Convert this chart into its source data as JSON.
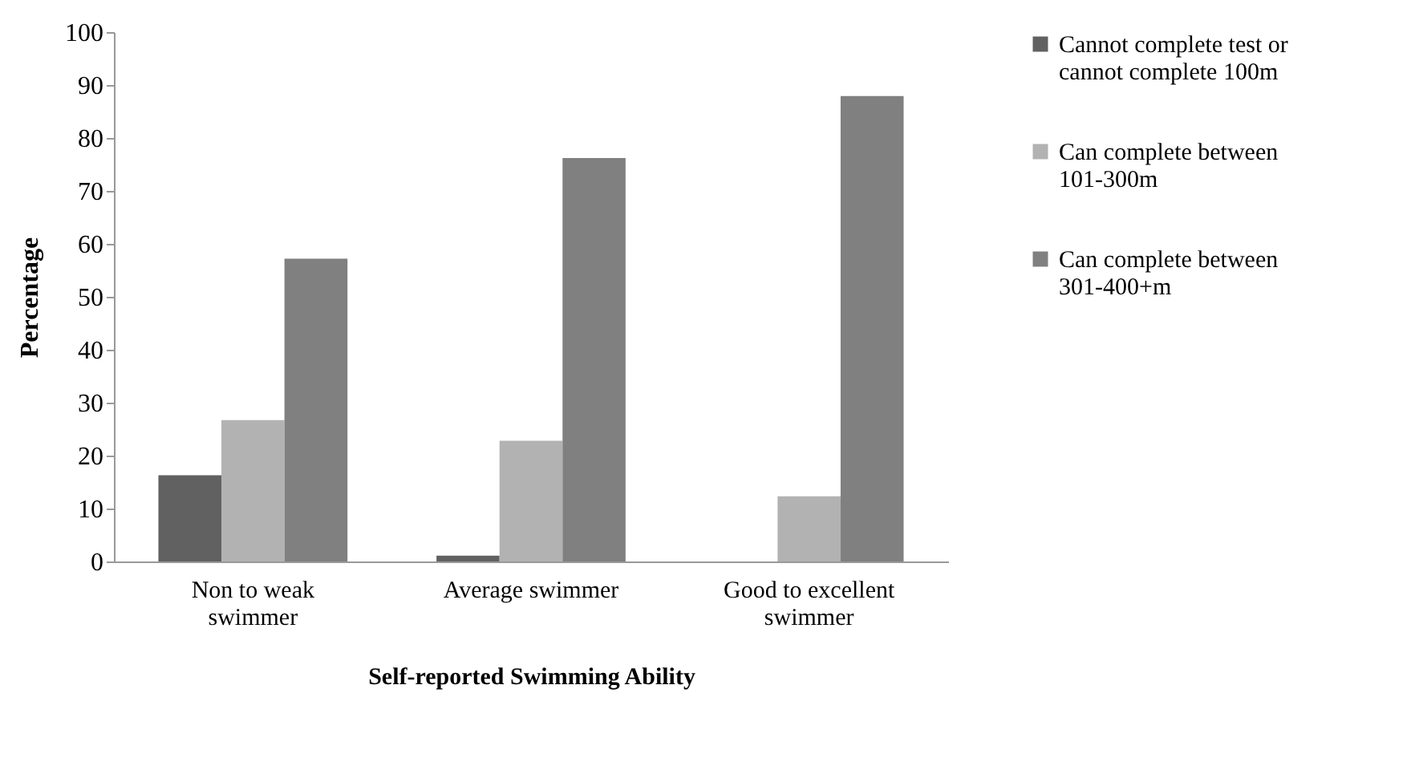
{
  "chart_data": {
    "type": "bar",
    "xlabel": "Self-reported Swimming Ability",
    "ylabel": "Percentage",
    "categories": [
      "Non to weak swimmer",
      "Average swimmer",
      "Good to excellent swimmer"
    ],
    "series": [
      {
        "name": "Cannot complete test or cannot complete 100m",
        "color": "#616161",
        "values": [
          16.3,
          1.1,
          0
        ]
      },
      {
        "name": "Can complete between 101-300m",
        "color": "#b2b2b2",
        "values": [
          26.7,
          22.8,
          12.3
        ]
      },
      {
        "name": "Can complete between 301-400+m",
        "color": "#808080",
        "values": [
          57.2,
          76.2,
          87.9
        ]
      }
    ],
    "ylim": [
      0,
      100
    ],
    "yticks": [
      0,
      10,
      20,
      30,
      40,
      50,
      60,
      70,
      80,
      90,
      100
    ],
    "grid": false,
    "legend": "right"
  }
}
